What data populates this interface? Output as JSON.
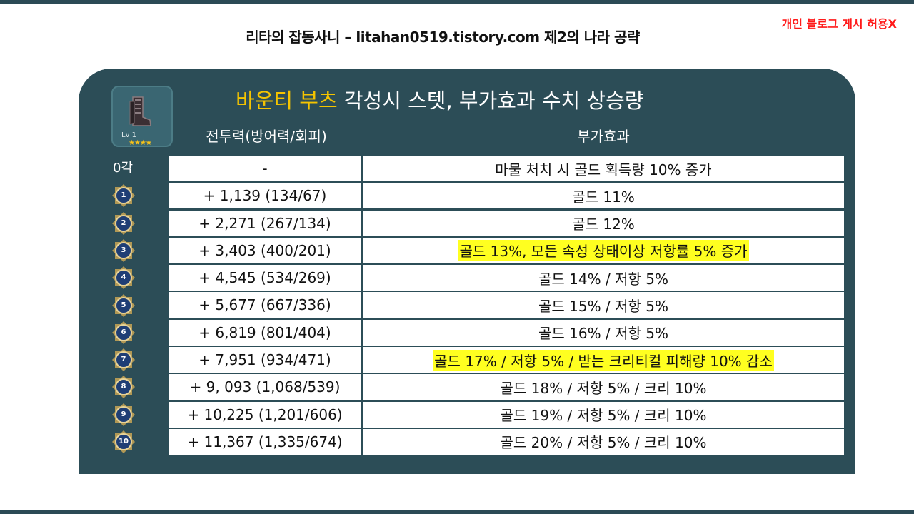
{
  "header": {
    "title": "리타의 잡동사니 – litahan0519.tistory.com 제2의 나라 공략",
    "notice": "개인 블로그 게시 허용X"
  },
  "item": {
    "icon": "boots-icon",
    "level": "Lv 1",
    "stars": "★★★★"
  },
  "panel": {
    "title_accent": "바운티 부츠",
    "title_rest": " 각성시 스텟, 부가효과 수치 상승량"
  },
  "columns": {
    "power": "전투력(방어력/회피)",
    "effect": "부가효과"
  },
  "base_label": "0각",
  "colors": {
    "panel": "#2c4d57",
    "accent": "#f5c400",
    "highlight": "#ffff20",
    "notice": "#ff1a1a"
  },
  "rows": [
    {
      "stage": "",
      "power": "-",
      "effect": "마물 처치 시 골드 획득량 10% 증가",
      "highlight": false
    },
    {
      "stage": "1",
      "power": "+ 1,139 (134/67)",
      "effect": "골드 11%",
      "highlight": false
    },
    {
      "stage": "2",
      "power": "+ 2,271 (267/134)",
      "effect": "골드 12%",
      "highlight": false
    },
    {
      "stage": "3",
      "power": "+ 3,403 (400/201)",
      "effect": "골드 13%, 모든 속성 상태이상 저항률 5% 증가",
      "highlight": true
    },
    {
      "stage": "4",
      "power": "+ 4,545 (534/269)",
      "effect": "골드 14% / 저항 5%",
      "highlight": false
    },
    {
      "stage": "5",
      "power": "+ 5,677 (667/336)",
      "effect": "골드 15% / 저항 5%",
      "highlight": false
    },
    {
      "stage": "6",
      "power": "+ 6,819 (801/404)",
      "effect": "골드 16% / 저항 5%",
      "highlight": false
    },
    {
      "stage": "7",
      "power": "+ 7,951 (934/471)",
      "effect": "골드 17% / 저항 5% / 받는 크리티컬 피해량 10% 감소",
      "highlight": true
    },
    {
      "stage": "8",
      "power": "+ 9, 093 (1,068/539)",
      "effect": "골드 18% / 저항 5% / 크리 10%",
      "highlight": false
    },
    {
      "stage": "9",
      "power": "+ 10,225 (1,201/606)",
      "effect": "골드 19% / 저항 5% / 크리 10%",
      "highlight": false
    },
    {
      "stage": "10",
      "power": "+ 11,367 (1,335/674)",
      "effect": "골드 20% / 저항 5% / 크리 10%",
      "highlight": false
    }
  ]
}
